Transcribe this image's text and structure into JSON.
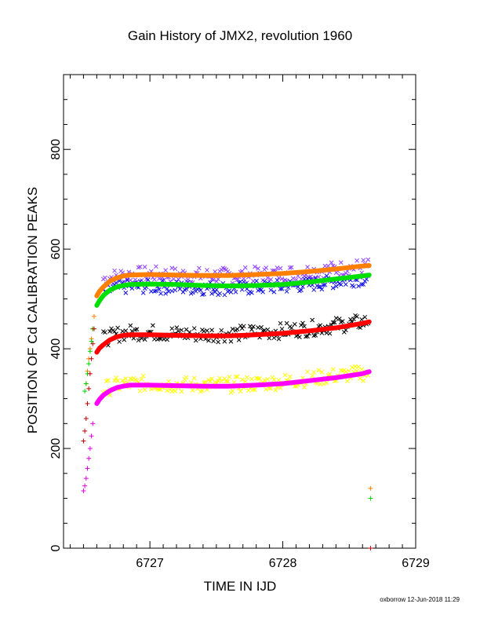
{
  "chart_data": {
    "type": "scatter",
    "title": "Gain History of JMX2, revolution 1960",
    "xlabel": "TIME IN IJD",
    "ylabel": "POSITION OF Cd CALIBRATION PEAKS",
    "xlim": [
      6726.35,
      6729.0
    ],
    "ylim": [
      0,
      950
    ],
    "x_ticks": [
      6727,
      6728,
      6729
    ],
    "y_ticks": [
      0,
      200,
      400,
      600,
      800
    ],
    "grid": false,
    "legend": "none",
    "series": [
      {
        "color": "#ff7f00",
        "marker": "line",
        "x": [
          6726.6,
          6726.62,
          6726.65,
          6726.7,
          6726.75,
          6726.8,
          6726.85,
          6727.0,
          6727.2,
          6727.4,
          6727.6,
          6727.8,
          6728.0,
          6728.2,
          6728.4,
          6728.6,
          6728.65
        ],
        "y": [
          506,
          515,
          524,
          536,
          542,
          546,
          548,
          549,
          548,
          547,
          547,
          549,
          551,
          555,
          560,
          566,
          567
        ]
      },
      {
        "color": "#00e000",
        "marker": "line",
        "x": [
          6726.6,
          6726.62,
          6726.65,
          6726.7,
          6726.75,
          6726.8,
          6726.85,
          6727.0,
          6727.2,
          6727.4,
          6727.6,
          6727.8,
          6728.0,
          6728.2,
          6728.4,
          6728.6,
          6728.65
        ],
        "y": [
          487,
          496,
          507,
          518,
          524,
          527,
          529,
          530,
          529,
          527,
          526,
          527,
          529,
          534,
          540,
          546,
          548
        ]
      },
      {
        "color": "#ff0000",
        "marker": "line",
        "x": [
          6726.6,
          6726.62,
          6726.65,
          6726.7,
          6726.75,
          6726.8,
          6726.85,
          6727.0,
          6727.2,
          6727.4,
          6727.6,
          6727.8,
          6728.0,
          6728.2,
          6728.4,
          6728.6,
          6728.65
        ],
        "y": [
          393,
          401,
          408,
          418,
          424,
          427,
          428,
          428,
          427,
          426,
          426,
          428,
          431,
          436,
          442,
          451,
          454
        ]
      },
      {
        "color": "#ff00ff",
        "marker": "line",
        "x": [
          6726.6,
          6726.62,
          6726.65,
          6726.7,
          6726.75,
          6726.8,
          6726.85,
          6727.0,
          6727.2,
          6727.4,
          6727.6,
          6727.8,
          6728.0,
          6728.2,
          6728.4,
          6728.6,
          6728.65
        ],
        "y": [
          290,
          298,
          307,
          316,
          322,
          325,
          327,
          327,
          326,
          325,
          325,
          327,
          330,
          336,
          342,
          350,
          354
        ]
      },
      {
        "color": "#9040ff",
        "marker": "x",
        "spread": 16,
        "x": [
          6726.65,
          6726.8,
          6727.0,
          6727.2,
          6727.4,
          6727.6,
          6727.8,
          6728.0,
          6728.2,
          6728.4,
          6728.65
        ],
        "y": [
          540,
          548,
          550,
          548,
          547,
          547,
          549,
          551,
          555,
          560,
          566
        ]
      },
      {
        "color": "#1010e0",
        "marker": "x",
        "spread": 14,
        "x": [
          6726.65,
          6726.8,
          6727.0,
          6727.2,
          6727.4,
          6727.6,
          6727.8,
          6728.0,
          6728.2,
          6728.4,
          6728.65
        ],
        "y": [
          515,
          524,
          525,
          523,
          522,
          521,
          523,
          525,
          529,
          535,
          542
        ]
      },
      {
        "color": "#000000",
        "marker": "x",
        "spread": 16,
        "x": [
          6726.65,
          6726.8,
          6727.0,
          6727.2,
          6727.4,
          6727.6,
          6727.8,
          6728.0,
          6728.2,
          6728.4,
          6728.65
        ],
        "y": [
          420,
          432,
          433,
          430,
          429,
          430,
          433,
          436,
          441,
          447,
          455
        ]
      },
      {
        "color": "#ffff00",
        "marker": "x",
        "spread": 16,
        "x": [
          6726.65,
          6726.8,
          6727.0,
          6727.2,
          6727.4,
          6727.6,
          6727.8,
          6728.0,
          6728.2,
          6728.4,
          6728.65
        ],
        "y": [
          320,
          330,
          330,
          328,
          328,
          328,
          330,
          334,
          340,
          346,
          352
        ]
      },
      {
        "color": "#ff7f00",
        "marker": "+",
        "x": [
          6726.52,
          6726.53,
          6726.54,
          6726.55,
          6726.56,
          6726.57,
          6726.58,
          6728.66
        ],
        "y": [
          330,
          355,
          380,
          400,
          420,
          440,
          465,
          120
        ]
      },
      {
        "color": "#00d000",
        "marker": "+",
        "x": [
          6726.51,
          6726.52,
          6726.53,
          6726.54,
          6726.55,
          6726.56,
          6726.57,
          6728.66
        ],
        "y": [
          315,
          330,
          350,
          370,
          395,
          415,
          440,
          100
        ]
      },
      {
        "color": "#c00000",
        "marker": "+",
        "x": [
          6726.5,
          6726.51,
          6726.52,
          6726.53,
          6726.54,
          6726.55,
          6726.56,
          6726.57,
          6726.58,
          6728.66
        ],
        "y": [
          215,
          235,
          260,
          290,
          320,
          350,
          380,
          410,
          440,
          0
        ]
      },
      {
        "color": "#e000e0",
        "marker": "+",
        "x": [
          6726.5,
          6726.51,
          6726.52,
          6726.53,
          6726.54,
          6726.55,
          6726.56,
          6726.57
        ],
        "y": [
          115,
          125,
          140,
          160,
          180,
          200,
          225,
          250
        ]
      }
    ]
  },
  "footer": "oxborrow 12-Jun-2018 11:29"
}
